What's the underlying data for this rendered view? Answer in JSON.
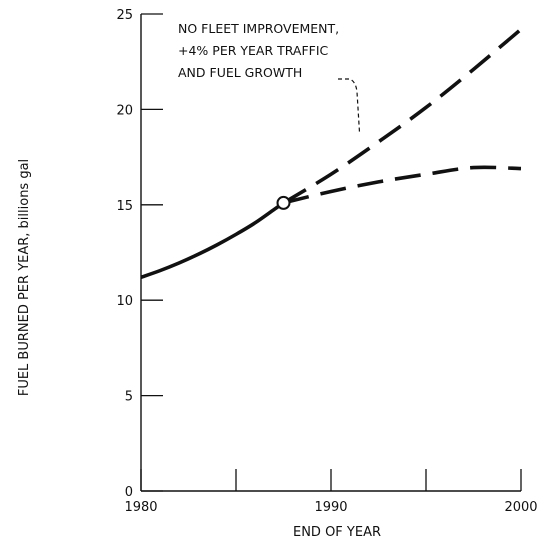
{
  "chart_data": {
    "type": "line",
    "title": "",
    "xlabel": "END OF YEAR",
    "ylabel": "FUEL BURNED PER YEAR, billions gal",
    "xlim": [
      1980,
      2000
    ],
    "ylim": [
      0,
      25
    ],
    "x_ticks": [
      1980,
      1985,
      1990,
      1995,
      2000
    ],
    "x_tick_labels": [
      "1980",
      "",
      "1990",
      "",
      "2000"
    ],
    "y_ticks": [
      0,
      5,
      10,
      15,
      20,
      25
    ],
    "y_tick_labels": [
      "0",
      "5",
      "10",
      "15",
      "20",
      "25"
    ],
    "grid": false,
    "series": [
      {
        "style": "solid",
        "points": [
          {
            "x": 1980,
            "y": 11.2
          },
          {
            "x": 1981,
            "y": 11.55
          },
          {
            "x": 1982,
            "y": 11.95
          },
          {
            "x": 1983,
            "y": 12.4
          },
          {
            "x": 1984,
            "y": 12.9
          },
          {
            "x": 1985,
            "y": 13.45
          },
          {
            "x": 1986,
            "y": 14.05
          },
          {
            "x": 1987,
            "y": 14.75
          },
          {
            "x": 1987.5,
            "y": 15.1
          }
        ]
      },
      {
        "name": "NO FLEET IMPROVEMENT, +4% PER YEAR TRAFFIC AND FUEL GROWTH",
        "style": "dashed",
        "points": [
          {
            "x": 1987.5,
            "y": 15.1
          },
          {
            "x": 1990,
            "y": 16.6
          },
          {
            "x": 1992.5,
            "y": 18.3
          },
          {
            "x": 1995,
            "y": 20.1
          },
          {
            "x": 1997.5,
            "y": 22.1
          },
          {
            "x": 2000,
            "y": 24.2
          }
        ]
      },
      {
        "style": "dashed",
        "points": [
          {
            "x": 1987.5,
            "y": 15.1
          },
          {
            "x": 1990,
            "y": 15.7
          },
          {
            "x": 1992.5,
            "y": 16.2
          },
          {
            "x": 1995,
            "y": 16.6
          },
          {
            "x": 1997.5,
            "y": 16.95
          },
          {
            "x": 2000,
            "y": 16.9
          }
        ]
      }
    ],
    "marker": {
      "x": 1987.5,
      "y": 15.1,
      "shape": "open-circle"
    },
    "annotation": {
      "lines": [
        "NO FLEET IMPROVEMENT,",
        "+4% PER YEAR TRAFFIC",
        "AND FUEL GROWTH"
      ],
      "points_to": {
        "x": 1991.5,
        "y": 18.8
      }
    }
  }
}
